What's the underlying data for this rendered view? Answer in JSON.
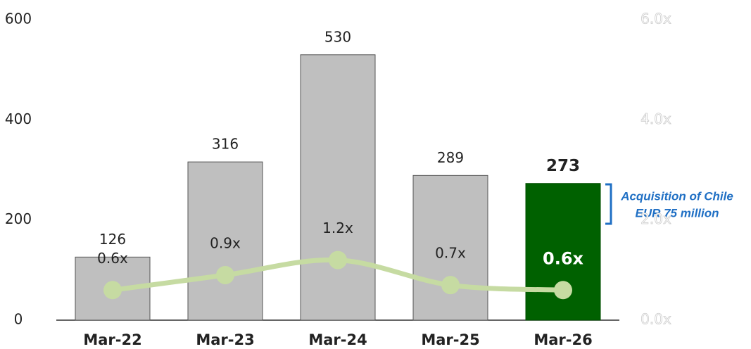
{
  "chart_data": {
    "type": "bar_line",
    "categories": [
      "Mar-22",
      "Mar-23",
      "Mar-24",
      "Mar-25",
      "Mar-26"
    ],
    "series": [
      {
        "type": "bar",
        "values": [
          126,
          316,
          530,
          289,
          273
        ],
        "colors": [
          "#bfbfbf",
          "#bfbfbf",
          "#bfbfbf",
          "#bfbfbf",
          "#006100"
        ]
      },
      {
        "type": "line",
        "axis": "y2",
        "color": "#c6dba2",
        "values": [
          0.6,
          0.9,
          1.2,
          0.7,
          0.6
        ],
        "value_labels": [
          "0.6x",
          "0.9x",
          "1.2x",
          "0.7x",
          "0.6x"
        ]
      }
    ],
    "ylim": [
      0,
      600
    ],
    "yticks": [
      0,
      200,
      400,
      600
    ],
    "y2lim": [
      0,
      6
    ],
    "y2ticks": [
      {
        "value": 0,
        "label": "0.0x"
      },
      {
        "value": 2,
        "label": "2.0x"
      },
      {
        "value": 4,
        "label": "4.0x"
      },
      {
        "value": 6,
        "label": "6.0x"
      }
    ],
    "annotation": [
      "Acquisition of Chile",
      "EUR 75 million"
    ]
  }
}
